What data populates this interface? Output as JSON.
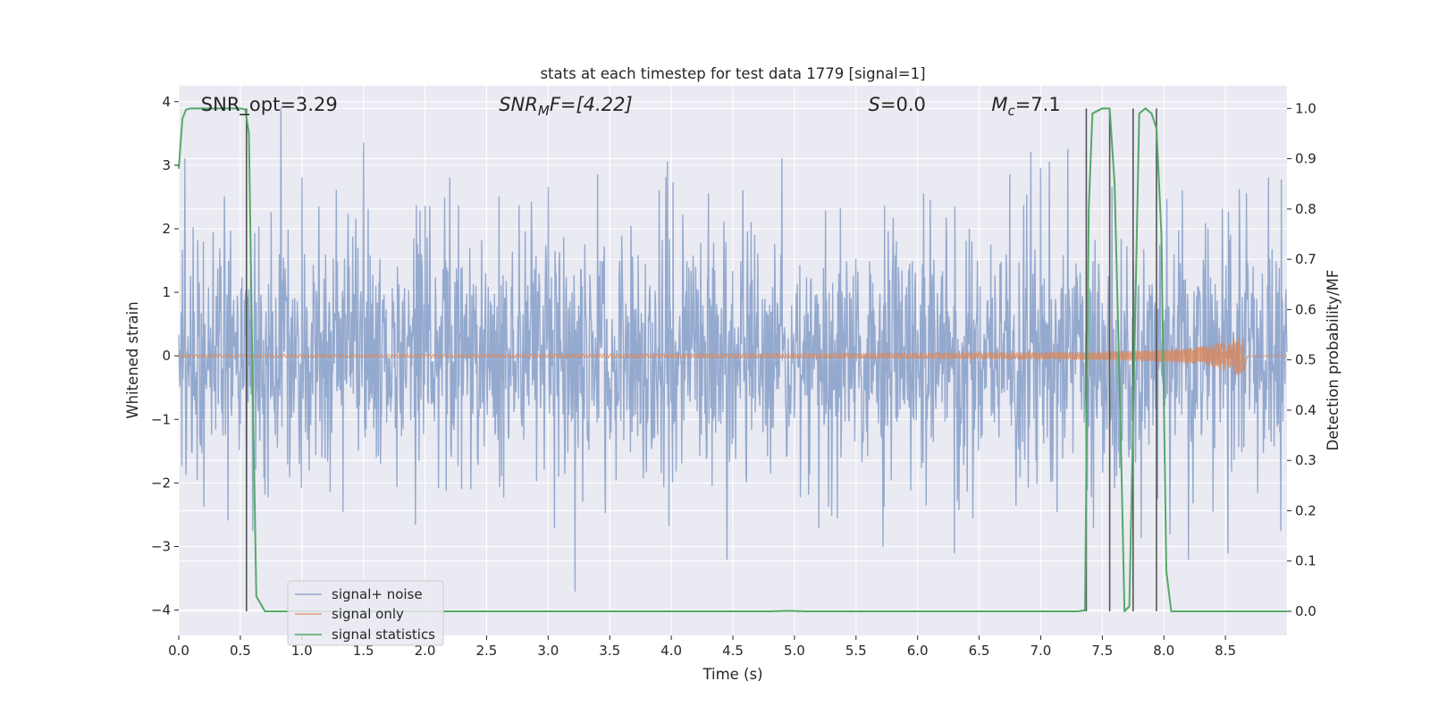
{
  "chart_data": {
    "type": "line",
    "title": "stats at each timestep for test data 1779 [signal=1]",
    "xlabel": "Time (s)",
    "ylabel_left": "Whitened strain",
    "ylabel_right": "Detection probability/MF",
    "xlim": [
      0.0,
      9.0
    ],
    "ylim_left": [
      -4.4,
      4.25
    ],
    "ylim_right": [
      -0.048,
      1.045
    ],
    "x_ticks": [
      0.0,
      0.5,
      1.0,
      1.5,
      2.0,
      2.5,
      3.0,
      3.5,
      4.0,
      4.5,
      5.0,
      5.5,
      6.0,
      6.5,
      7.0,
      7.5,
      8.0,
      8.5
    ],
    "x_tick_labels": [
      "0.0",
      "0.5",
      "1.0",
      "1.5",
      "2.0",
      "2.5",
      "3.0",
      "3.5",
      "4.0",
      "4.5",
      "5.0",
      "5.5",
      "6.0",
      "6.5",
      "7.0",
      "7.5",
      "8.0",
      "8.5"
    ],
    "y_left_ticks": [
      4,
      3,
      2,
      1,
      0,
      -1,
      -2,
      -3,
      -4
    ],
    "y_left_tick_labels": [
      "4",
      "3",
      "2",
      "1",
      "0",
      "−1",
      "−2",
      "−3",
      "−4"
    ],
    "y_right_ticks": [
      1.0,
      0.9,
      0.8,
      0.7,
      0.6,
      0.5,
      0.4,
      0.3,
      0.2,
      0.1,
      0.0
    ],
    "y_right_tick_labels": [
      "1.0",
      "0.9",
      "0.8",
      "0.7",
      "0.6",
      "0.5",
      "0.4",
      "0.3",
      "0.2",
      "0.1",
      "0.0"
    ],
    "grid": true,
    "legend_position": "lower-left",
    "annotations": [
      {
        "label": "SNR_opt=3.29",
        "x": 0.18
      },
      {
        "label": "SNR",
        "sub": "M",
        "suffix": "F=[4.22]",
        "italic": true,
        "x": 2.6
      },
      {
        "label": "S",
        "suffix": "=0.0",
        "italic": true,
        "x": 5.6
      },
      {
        "label": "M",
        "sub": "c",
        "suffix": "=7.1",
        "italic": true,
        "x": 6.6
      }
    ],
    "series": [
      {
        "name": "signal+ noise",
        "color": "#4c72b0",
        "opacity": 0.55,
        "axis": "left",
        "style": "dense-noise",
        "sigma": 0.93,
        "samples": 2160,
        "peaks": [
          [
            0.05,
            3.1
          ],
          [
            0.37,
            2.5
          ],
          [
            0.55,
            -2.6
          ],
          [
            0.6,
            -2.75
          ],
          [
            0.83,
            3.9
          ],
          [
            1.0,
            2.8
          ],
          [
            1.28,
            2.6
          ],
          [
            1.5,
            3.35
          ],
          [
            1.92,
            -2.65
          ],
          [
            2.2,
            2.8
          ],
          [
            2.6,
            2.5
          ],
          [
            3.0,
            2.65
          ],
          [
            3.22,
            -3.7
          ],
          [
            3.4,
            2.85
          ],
          [
            3.9,
            2.6
          ],
          [
            3.97,
            3.05
          ],
          [
            4.3,
            2.55
          ],
          [
            4.45,
            -3.2
          ],
          [
            4.58,
            2.6
          ],
          [
            4.9,
            3.1
          ],
          [
            5.2,
            -2.7
          ],
          [
            5.35,
            -2.55
          ],
          [
            5.72,
            -3.0
          ],
          [
            6.05,
            2.55
          ],
          [
            6.3,
            -3.1
          ],
          [
            6.45,
            -2.55
          ],
          [
            6.75,
            2.85
          ],
          [
            6.8,
            -2.35
          ],
          [
            6.92,
            3.2
          ],
          [
            7.0,
            2.95
          ],
          [
            7.07,
            3.05
          ],
          [
            7.22,
            3.25
          ],
          [
            7.43,
            -2.7
          ],
          [
            7.58,
            2.65
          ],
          [
            7.75,
            -2.4
          ],
          [
            7.95,
            -2.25
          ],
          [
            8.05,
            -2.8
          ],
          [
            8.15,
            2.6
          ],
          [
            8.2,
            -3.2
          ],
          [
            8.52,
            -3.1
          ],
          [
            8.67,
            2.55
          ],
          [
            8.85,
            2.8
          ],
          [
            8.95,
            -2.75
          ]
        ]
      },
      {
        "name": "signal only",
        "color": "#dd8452",
        "opacity": 0.75,
        "axis": "left",
        "style": "chirp",
        "t_start": 0.0,
        "t_merge": 8.65,
        "amplitude_start": 0.02,
        "amplitude_peak": 0.3
      },
      {
        "name": "signal statistics",
        "color": "#55a868",
        "axis": "right",
        "style": "line",
        "x": [
          0.0,
          0.03,
          0.06,
          0.1,
          0.2,
          0.3,
          0.4,
          0.5,
          0.54,
          0.57,
          0.6,
          0.63,
          0.7,
          1.0,
          2.0,
          3.0,
          4.0,
          4.8,
          4.95,
          5.1,
          6.0,
          7.0,
          7.3,
          7.36,
          7.39,
          7.42,
          7.5,
          7.56,
          7.6,
          7.65,
          7.68,
          7.72,
          7.76,
          7.8,
          7.85,
          7.9,
          7.94,
          7.98,
          8.02,
          8.06,
          8.1,
          8.5,
          9.0
        ],
        "y": [
          0.88,
          0.98,
          0.998,
          1.0,
          1.0,
          1.0,
          1.0,
          1.0,
          0.998,
          0.95,
          0.45,
          0.03,
          0.0,
          0.0,
          0.0,
          0.0,
          0.0,
          0.0,
          0.001,
          0.0,
          0.0,
          0.0,
          0.0,
          0.002,
          0.8,
          0.99,
          1.0,
          1.0,
          0.85,
          0.35,
          0.0,
          0.01,
          0.5,
          0.99,
          1.0,
          0.99,
          0.96,
          0.75,
          0.08,
          0.0,
          0.0,
          0.0,
          0.0
        ]
      }
    ],
    "vlines": [
      0.55,
      7.37,
      7.56,
      7.75,
      7.94
    ],
    "vline_color": "#555555"
  }
}
